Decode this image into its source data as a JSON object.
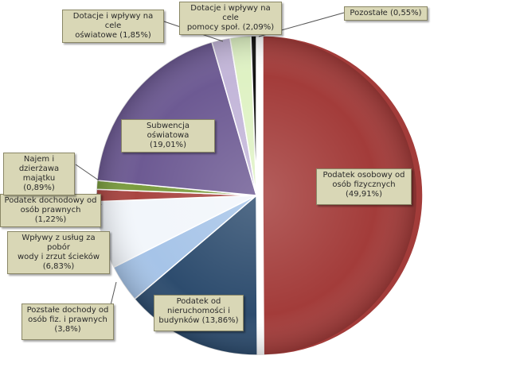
{
  "chart_data": {
    "type": "pie",
    "title": "",
    "slices": [
      {
        "label": "Podatek osobowy od\nosób fizycznych\n(49,91%)",
        "value": 49.91,
        "color": "#a33c3a"
      },
      {
        "label": "Podatek od\nnieruchomości i\nbudynków (13,86%)",
        "value": 13.86,
        "color": "#2d4c6e"
      },
      {
        "label": "Pozstałe dochody od\nosób fiz. i prawnych\n(3,8%)",
        "value": 3.8,
        "color": "#a6c4e8"
      },
      {
        "label": "Wpływy z usług za pobór\nwody i zrzut ścieków\n(6,83%)",
        "value": 6.83,
        "color": "#f2f6fb"
      },
      {
        "label": "Podatek dochodowy od\nosób prawnych (1,22%)",
        "value": 1.22,
        "color": "#a94541"
      },
      {
        "label": "Najem i dzierżawa\nmajątku (0,89%)",
        "value": 0.89,
        "color": "#7a9c3e"
      },
      {
        "label": "Subwencja oświatowa\n(19,01%)",
        "value": 19.01,
        "color": "#6d5a93"
      },
      {
        "label": "Dotacje i wpływy na cele\noświatowe (1,85%)",
        "value": 1.85,
        "color": "#c3b6d9"
      },
      {
        "label": "Dotacje i wpływy na cele\npomocy społ. (2,09%)",
        "value": 2.09,
        "color": "#dff2c4"
      },
      {
        "label": "Pozostałe (0,55%)",
        "value": 0.55,
        "color": "#111111"
      }
    ]
  }
}
